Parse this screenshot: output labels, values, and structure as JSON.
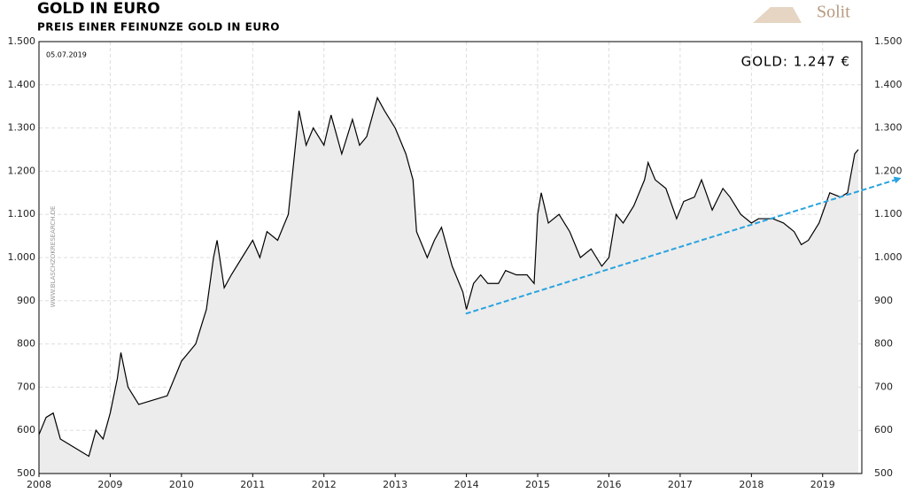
{
  "chart_data": {
    "type": "line",
    "title": "GOLD IN EURO",
    "subtitle": "PREIS EINER FEINUNZE GOLD IN EURO",
    "date_label": "05.07.2019",
    "price_label": "GOLD: 1.247 €",
    "watermark": "WWW.BLASCHZOKRESEARCH.DE",
    "logo": "Solit",
    "xlim": [
      2008,
      2019.55
    ],
    "xticks": [
      2008,
      2009,
      2010,
      2011,
      2012,
      2013,
      2014,
      2015,
      2016,
      2017,
      2018,
      2019
    ],
    "ylim": [
      500,
      1500
    ],
    "yticks": [
      500,
      600,
      700,
      800,
      900,
      {
        "value": 1000,
        "label": "1.000"
      },
      {
        "value": 1100,
        "label": "1.100"
      },
      {
        "value": 1200,
        "label": "1.200"
      },
      {
        "value": 1300,
        "label": "1.300"
      },
      {
        "value": 1400,
        "label": "1.400"
      },
      {
        "value": 1500,
        "label": "1.500"
      }
    ],
    "grid": true,
    "area_color": "#ececec",
    "series": [
      {
        "color": "#000000",
        "x": [
          2008.0,
          2008.1,
          2008.2,
          2008.3,
          2008.4,
          2008.5,
          2008.6,
          2008.7,
          2008.8,
          2008.9,
          2009.0,
          2009.1,
          2009.15,
          2009.25,
          2009.4,
          2009.6,
          2009.8,
          2009.95,
          2010.0,
          2010.2,
          2010.35,
          2010.45,
          2010.5,
          2010.6,
          2010.7,
          2010.85,
          2011.0,
          2011.1,
          2011.2,
          2011.35,
          2011.5,
          2011.65,
          2011.75,
          2011.85,
          2012.0,
          2012.1,
          2012.25,
          2012.4,
          2012.5,
          2012.6,
          2012.75,
          2012.85,
          2013.0,
          2013.15,
          2013.25,
          2013.3,
          2013.45,
          2013.55,
          2013.65,
          2013.8,
          2013.95,
          2014.0,
          2014.1,
          2014.2,
          2014.3,
          2014.45,
          2014.55,
          2014.7,
          2014.85,
          2014.95,
          2015.0,
          2015.05,
          2015.15,
          2015.3,
          2015.45,
          2015.6,
          2015.75,
          2015.9,
          2016.0,
          2016.1,
          2016.2,
          2016.35,
          2016.5,
          2016.55,
          2016.65,
          2016.8,
          2016.95,
          2017.05,
          2017.2,
          2017.3,
          2017.45,
          2017.6,
          2017.7,
          2017.85,
          2018.0,
          2018.1,
          2018.3,
          2018.45,
          2018.6,
          2018.7,
          2018.8,
          2018.95,
          2019.1,
          2019.25,
          2019.35,
          2019.45,
          2019.5
        ],
        "values": [
          590,
          630,
          640,
          580,
          570,
          560,
          550,
          540,
          600,
          580,
          640,
          720,
          780,
          700,
          660,
          670,
          680,
          740,
          760,
          800,
          880,
          1000,
          1040,
          930,
          960,
          1000,
          1040,
          1000,
          1060,
          1040,
          1100,
          1340,
          1260,
          1300,
          1260,
          1330,
          1240,
          1320,
          1260,
          1280,
          1370,
          1340,
          1300,
          1240,
          1180,
          1060,
          1000,
          1040,
          1070,
          980,
          920,
          880,
          940,
          960,
          940,
          940,
          970,
          960,
          960,
          940,
          1100,
          1150,
          1080,
          1100,
          1060,
          1000,
          1020,
          980,
          1000,
          1100,
          1080,
          1120,
          1180,
          1220,
          1180,
          1160,
          1090,
          1130,
          1140,
          1180,
          1110,
          1160,
          1140,
          1100,
          1080,
          1090,
          1090,
          1080,
          1060,
          1030,
          1040,
          1080,
          1150,
          1140,
          1150,
          1240,
          1250
        ]
      }
    ],
    "trend_line": {
      "color": "#29a3e0",
      "x": [
        2013.99,
        2020.08
      ],
      "values": [
        870,
        1183
      ]
    }
  }
}
